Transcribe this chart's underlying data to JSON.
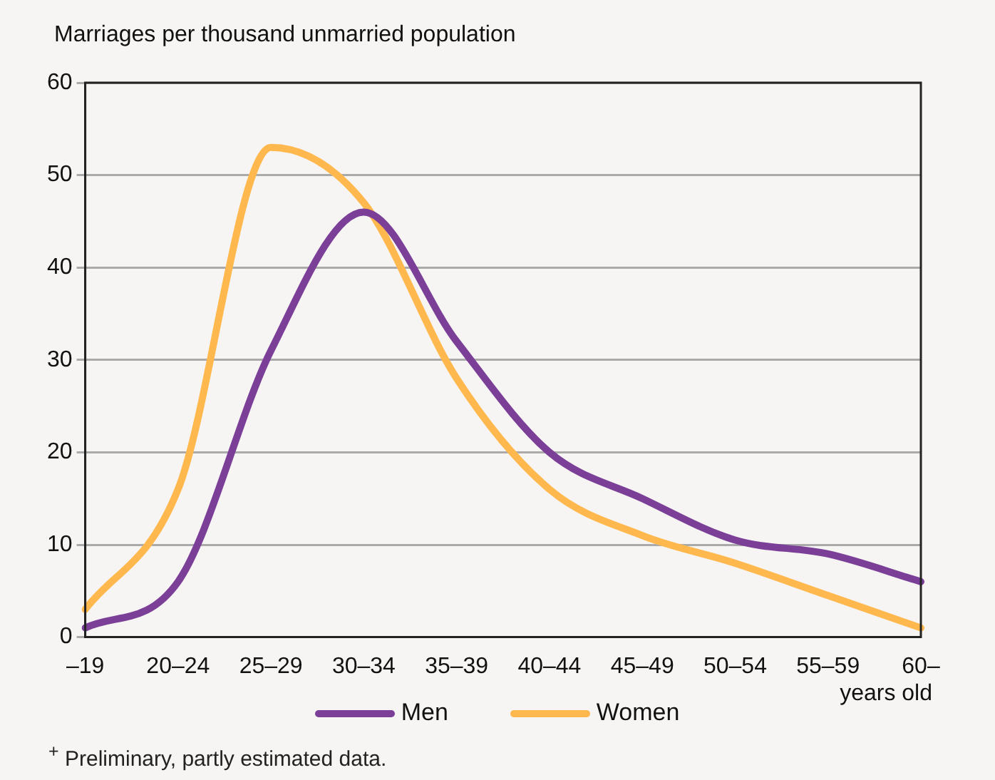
{
  "chart_data": {
    "type": "line",
    "ylabel": "Marriages per thousand unmarried population",
    "xlabel": "years old",
    "categories": [
      "–19",
      "20–24",
      "25–29",
      "30–34",
      "35–39",
      "40–44",
      "45–49",
      "50–54",
      "55–59",
      "60–"
    ],
    "series": [
      {
        "name": "Men",
        "color": "#7b3f98",
        "values": [
          1,
          6,
          31,
          46,
          32,
          20,
          15,
          10.5,
          9,
          6
        ]
      },
      {
        "name": "Women",
        "color": "#ffb84d",
        "values": [
          3,
          16,
          53,
          47,
          28,
          16,
          11,
          8,
          4.5,
          1
        ]
      }
    ],
    "ylim": [
      0,
      60
    ],
    "yticks": [
      0,
      10,
      20,
      30,
      40,
      50,
      60
    ],
    "grid": "y",
    "legend": "bottom",
    "marker": "none",
    "line_style": "solid",
    "annotations": [
      "$^{+}$ Preliminary, partly estimated data."
    ]
  }
}
